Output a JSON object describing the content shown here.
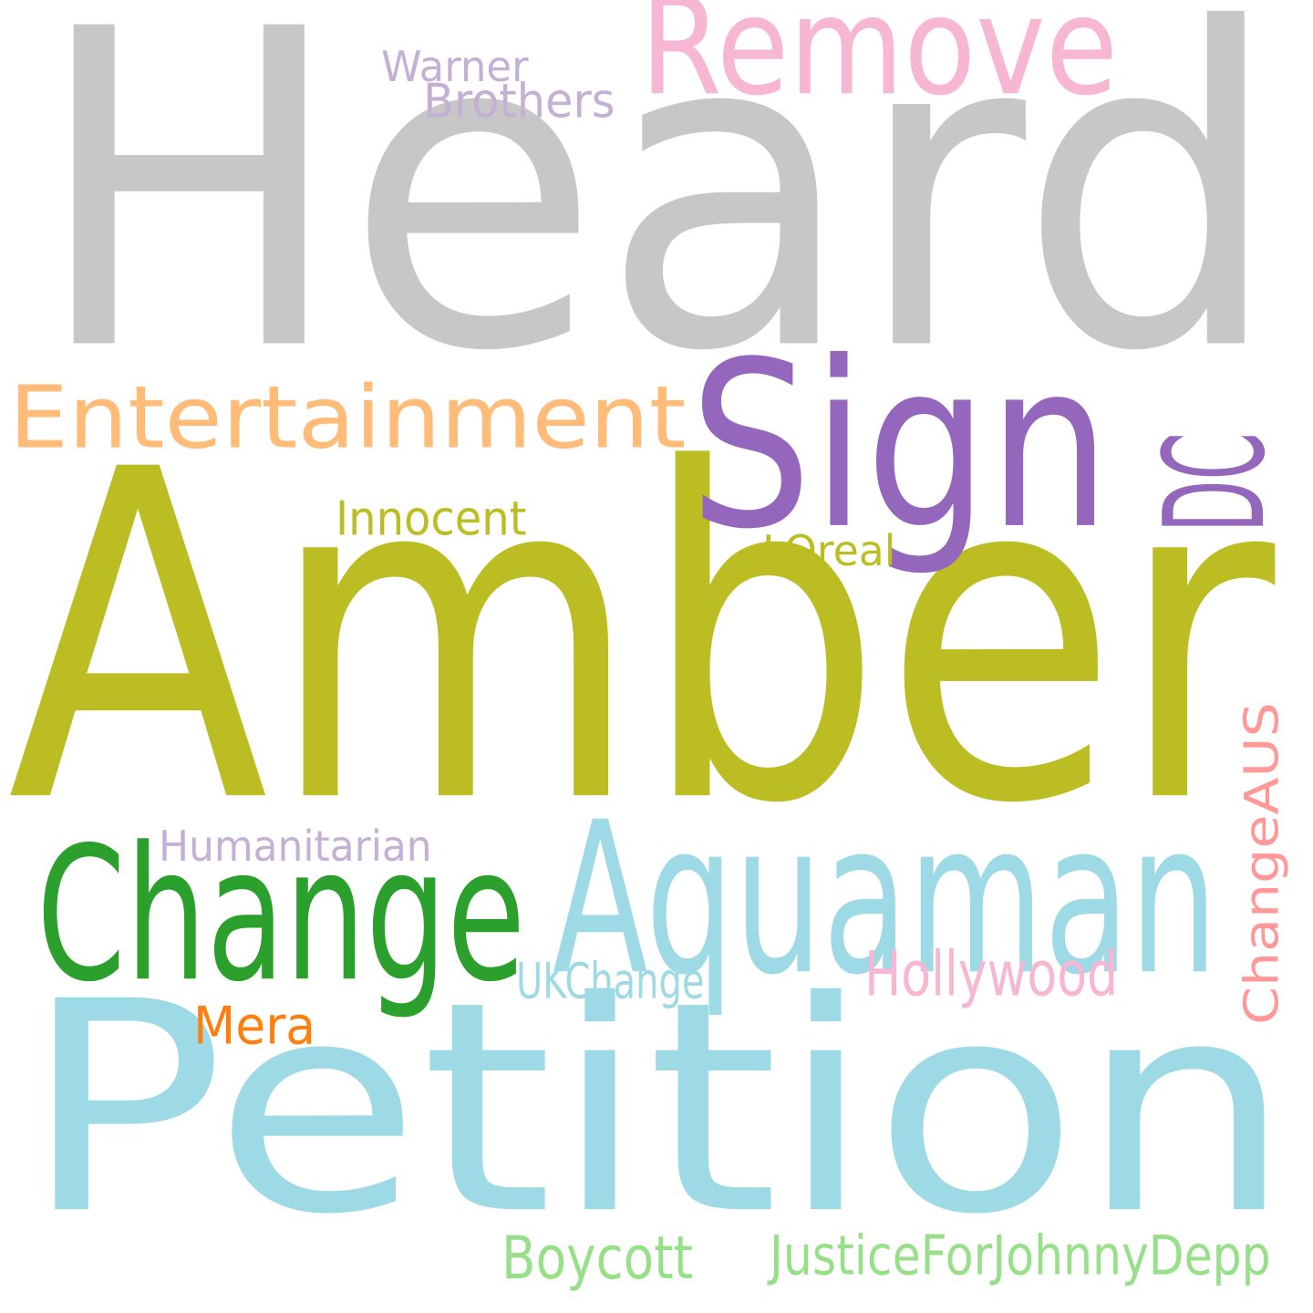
{
  "cloud": {
    "words": [
      {
        "key": "heard",
        "text": "Heard",
        "color": "#c7c7c7"
      },
      {
        "key": "amber",
        "text": "Amber",
        "color": "#bcbd22"
      },
      {
        "key": "petition",
        "text": "Petition",
        "color": "#9edae5"
      },
      {
        "key": "remove",
        "text": "Remove",
        "color": "#f7b6d2"
      },
      {
        "key": "sign",
        "text": "Sign",
        "color": "#9467bd"
      },
      {
        "key": "entertainment",
        "text": "Entertainment",
        "color": "#ffbb78"
      },
      {
        "key": "dc",
        "text": "DC",
        "color": "#9467bd"
      },
      {
        "key": "change",
        "text": "Change",
        "color": "#2ca02c"
      },
      {
        "key": "aquaman",
        "text": "Aquaman",
        "color": "#9edae5"
      },
      {
        "key": "warner",
        "text": "Warner",
        "color": "#c5b0d5"
      },
      {
        "key": "brothers",
        "text": "Brothers",
        "color": "#c5b0d5"
      },
      {
        "key": "innocent",
        "text": "Innocent",
        "color": "#bcbd22"
      },
      {
        "key": "loreal",
        "text": "LOreal",
        "color": "#bcbd22"
      },
      {
        "key": "changeaus",
        "text": "ChangeAUS",
        "color": "#ff9896"
      },
      {
        "key": "humanitarian",
        "text": "Humanitarian",
        "color": "#c5b0d5"
      },
      {
        "key": "ukchange",
        "text": "UKChange",
        "color": "#9edae5"
      },
      {
        "key": "hollywood",
        "text": "Hollywood",
        "color": "#f7b6d2"
      },
      {
        "key": "mera",
        "text": "Mera",
        "color": "#ff7f0e"
      },
      {
        "key": "boycott",
        "text": "Boycott",
        "color": "#98df8a"
      },
      {
        "key": "justicefor",
        "text": "JusticeForJohnnyDepp",
        "color": "#98df8a"
      }
    ]
  }
}
